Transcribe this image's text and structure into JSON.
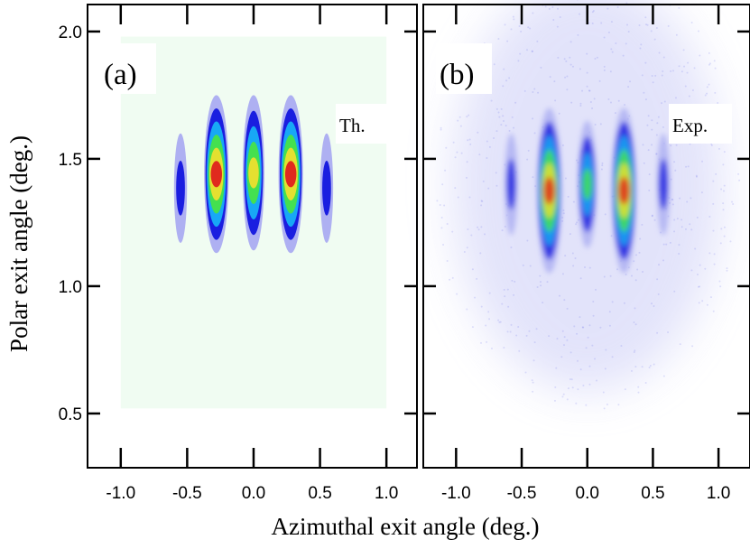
{
  "chart_data": [
    {
      "type": "heatmap",
      "panel_label": "(a)",
      "annotation": "Th.",
      "ylabel": "Polar exit angle (deg.)",
      "xlabel": "Azimuthal exit angle (deg.)",
      "xlim": [
        -1.25,
        1.23
      ],
      "ylim": [
        0.287,
        2.106
      ],
      "xticks": [
        {
          "value": -1,
          "label": "-1.0"
        },
        -0.5,
        {
          "value": 0,
          "label": "0.0"
        },
        0.5,
        {
          "value": 1,
          "label": "1.0"
        }
      ],
      "yticks": [
        0.5,
        {
          "value": 1,
          "label": "1.0"
        },
        1.5,
        {
          "value": 2,
          "label": "2.0"
        }
      ],
      "background_region": {
        "x": [
          -1,
          1
        ],
        "y": [
          0.52,
          1.98
        ],
        "color": "#f0fcf2"
      },
      "colormap": [
        "#aeb0f2",
        "#1a1ee0",
        "#18a8f5",
        "#44e050",
        "#e4e030",
        "#e02a1e"
      ],
      "blur": false,
      "spots": {
        "x": [
          -0.55,
          -0.28,
          0,
          0.28,
          0.55
        ],
        "y_low": [
          1.17,
          1.13,
          1.14,
          1.13,
          1.17
        ],
        "y_high": [
          1.6,
          1.75,
          1.75,
          1.75,
          1.6
        ],
        "levels": [
          2,
          6,
          5,
          6,
          2
        ]
      }
    },
    {
      "type": "heatmap",
      "panel_label": "(b)",
      "annotation": "Exp.",
      "xlim": [
        -1.25,
        1.24
      ],
      "ylim": [
        0.287,
        2.106
      ],
      "xticks": [
        {
          "value": -1,
          "label": "-1.0"
        },
        -0.5,
        {
          "value": 0,
          "label": "0.0"
        },
        0.5,
        {
          "value": 1,
          "label": "1.0"
        }
      ],
      "yticks": [
        0.5,
        1.5,
        {
          "value": 2,
          "label": "2.0"
        },
        {
          "value": 1,
          "label": "1.0"
        }
      ],
      "colormap": [
        "#aeb0f2",
        "#1a1ee0",
        "#18a8f5",
        "#44e050",
        "#e4e030",
        "#e02a1e"
      ],
      "blur": true,
      "spots": {
        "x": [
          -0.58,
          -0.29,
          0,
          0.28,
          0.58
        ],
        "y_low": [
          1.2,
          1.05,
          1.15,
          1.05,
          1.2
        ],
        "y_high": [
          1.6,
          1.7,
          1.65,
          1.7,
          1.6
        ],
        "levels": [
          2,
          6,
          4,
          6,
          2
        ]
      }
    }
  ]
}
